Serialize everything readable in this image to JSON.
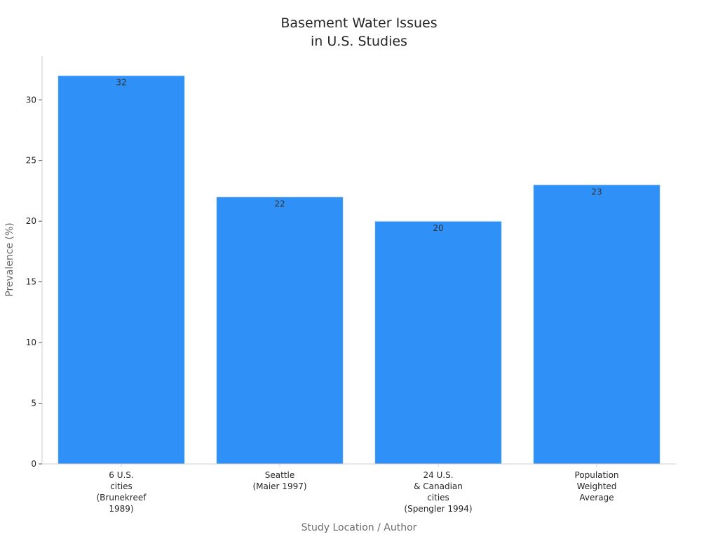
{
  "chart_data": {
    "type": "bar",
    "title": [
      "Basement Water Issues",
      "in U.S. Studies"
    ],
    "xlabel": "Study Location / Author",
    "ylabel": "Prevalence (%)",
    "categories": [
      [
        "6 U.S.",
        "cities",
        "(Brunekreef",
        "1989)"
      ],
      [
        "Seattle",
        "(Maier 1997)"
      ],
      [
        "24 U.S.",
        "& Canadian",
        "cities",
        "(Spengler 1994)"
      ],
      [
        "Population",
        "Weighted",
        "Average"
      ]
    ],
    "values": [
      32,
      22,
      20,
      23
    ],
    "data_labels": [
      "32",
      "22",
      "20",
      "23"
    ],
    "yticks": [
      0,
      5,
      10,
      15,
      20,
      25,
      30
    ],
    "ylim": [
      0,
      33.6
    ],
    "grid": false,
    "legend": "none",
    "colors": {
      "bar": "#2f91f7",
      "axis": "#cfcfcf",
      "tick_text": "#262626",
      "axis_label": "#6b6b6b",
      "data_label": "#333333"
    }
  }
}
